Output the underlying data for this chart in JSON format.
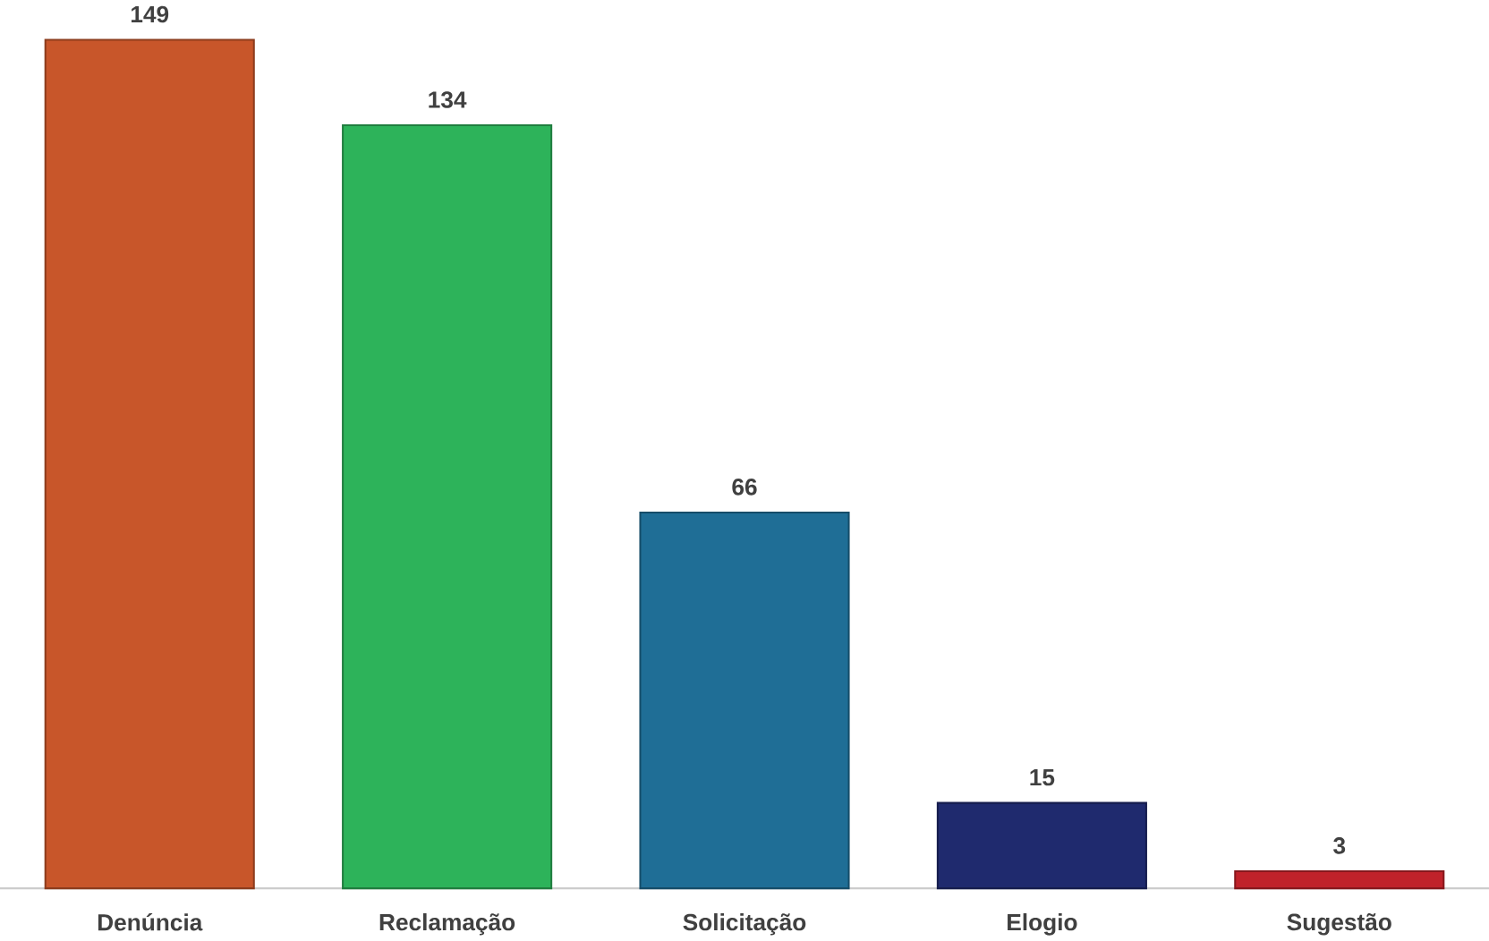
{
  "chart_data": {
    "type": "bar",
    "categories": [
      "Denúncia",
      "Reclamação",
      "Solicitação",
      "Elogio",
      "Sugestão"
    ],
    "values": [
      149,
      134,
      66,
      15,
      3
    ],
    "colors": [
      "#c8562a",
      "#2db35a",
      "#1f6e96",
      "#1f2a6e",
      "#c0222a"
    ],
    "data_labels": true
  }
}
